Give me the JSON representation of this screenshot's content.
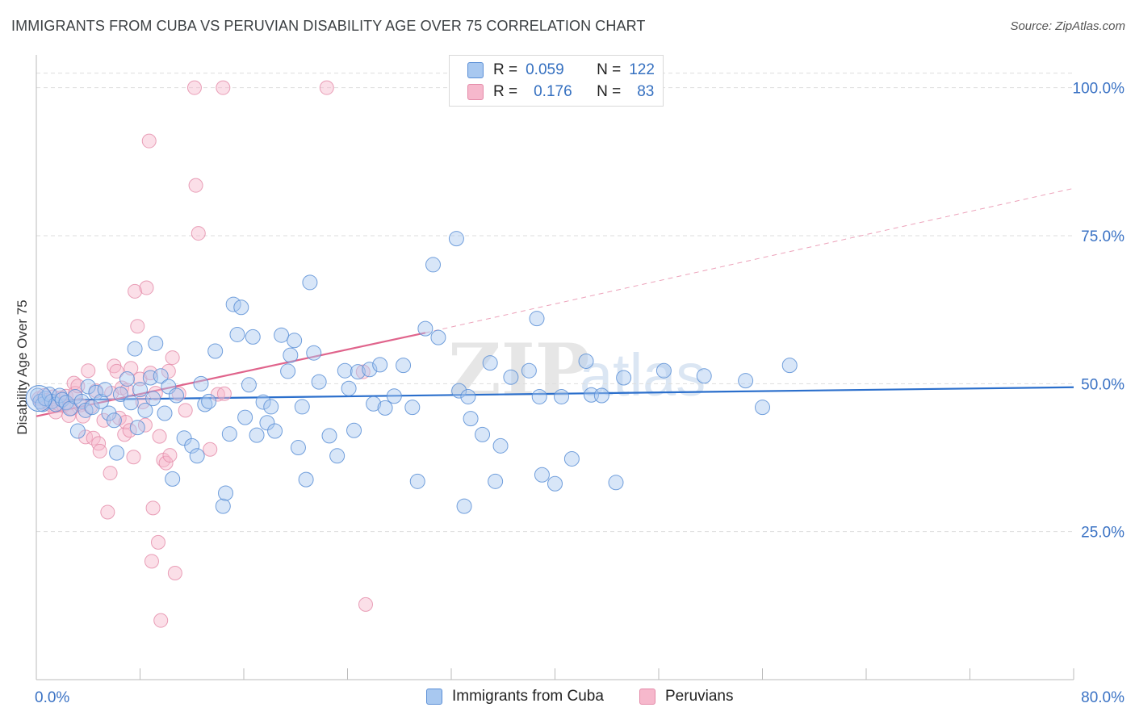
{
  "title": "IMMIGRANTS FROM CUBA VS PERUVIAN DISABILITY AGE OVER 75 CORRELATION CHART",
  "source": "Source: ZipAtlas.com",
  "watermark": "ZIPatlas",
  "colors": {
    "blue_fill": "#a8c8f0",
    "blue_stroke": "#5b8fd6",
    "blue_line": "#2b6fcc",
    "pink_fill": "#f6b8cc",
    "pink_stroke": "#e48aa8",
    "pink_line": "#e0648c",
    "tick_text": "#3a72c4",
    "grid": "#dddddd"
  },
  "legend": {
    "blue": {
      "r_label": "R =",
      "r_value": "0.059",
      "n_label": "N =",
      "n_value": "122"
    },
    "pink": {
      "r_label": "R =",
      "r_value": "0.176",
      "n_label": "N =",
      "n_value": "83"
    }
  },
  "chart_data": {
    "type": "scatter",
    "xlabel": "",
    "ylabel": "Disability Age Over 75",
    "xlim": [
      0,
      80
    ],
    "ylim": [
      0,
      105
    ],
    "x_tick_labels": [
      {
        "value": 0,
        "label": "0.0%"
      },
      {
        "value": 80,
        "label": "80.0%"
      }
    ],
    "y_tick_labels": [
      {
        "value": 25,
        "label": "25.0%"
      },
      {
        "value": 50,
        "label": "50.0%"
      },
      {
        "value": 75,
        "label": "75.0%"
      },
      {
        "value": 100,
        "label": "100.0%"
      }
    ],
    "grid": true,
    "legend_position": "top-center",
    "series": [
      {
        "name": "Immigrants from Cuba",
        "color": "#a8c8f0",
        "trend": {
          "x": [
            0,
            80
          ],
          "y": [
            47.2,
            49.4
          ]
        },
        "points": [
          [
            0.1,
            48.0
          ],
          [
            0.3,
            47.0
          ],
          [
            0.5,
            46.5
          ],
          [
            0.7,
            47.5
          ],
          [
            1.0,
            48.2
          ],
          [
            1.2,
            47.0
          ],
          [
            1.5,
            46.5
          ],
          [
            1.8,
            48.0
          ],
          [
            2.0,
            47.3
          ],
          [
            2.3,
            46.8
          ],
          [
            2.6,
            45.8
          ],
          [
            3.0,
            47.8
          ],
          [
            3.2,
            42.0
          ],
          [
            3.5,
            47.0
          ],
          [
            3.8,
            45.5
          ],
          [
            4.0,
            49.5
          ],
          [
            4.3,
            46.0
          ],
          [
            4.6,
            48.5
          ],
          [
            5.0,
            47.0
          ],
          [
            5.3,
            49.0
          ],
          [
            5.6,
            45.0
          ],
          [
            6.0,
            43.8
          ],
          [
            6.2,
            38.3
          ],
          [
            6.5,
            48.2
          ],
          [
            7.0,
            50.8
          ],
          [
            7.3,
            46.8
          ],
          [
            7.6,
            55.9
          ],
          [
            7.8,
            42.6
          ],
          [
            8.0,
            49.0
          ],
          [
            8.4,
            45.5
          ],
          [
            8.8,
            51.0
          ],
          [
            9.0,
            47.5
          ],
          [
            9.2,
            56.8
          ],
          [
            9.6,
            51.3
          ],
          [
            9.9,
            45.0
          ],
          [
            10.2,
            49.5
          ],
          [
            10.5,
            33.9
          ],
          [
            10.8,
            48.0
          ],
          [
            11.4,
            40.8
          ],
          [
            12.0,
            39.5
          ],
          [
            12.4,
            37.8
          ],
          [
            12.7,
            50.0
          ],
          [
            13.0,
            46.5
          ],
          [
            13.3,
            47.0
          ],
          [
            13.8,
            55.5
          ],
          [
            14.4,
            29.3
          ],
          [
            14.6,
            31.5
          ],
          [
            14.9,
            41.5
          ],
          [
            15.2,
            63.4
          ],
          [
            15.5,
            58.3
          ],
          [
            15.8,
            62.9
          ],
          [
            16.1,
            44.3
          ],
          [
            16.4,
            49.8
          ],
          [
            16.7,
            57.9
          ],
          [
            17.0,
            41.3
          ],
          [
            17.5,
            46.9
          ],
          [
            17.8,
            43.4
          ],
          [
            18.1,
            46.1
          ],
          [
            18.4,
            42.0
          ],
          [
            18.9,
            58.2
          ],
          [
            19.4,
            52.1
          ],
          [
            19.6,
            54.8
          ],
          [
            19.9,
            57.3
          ],
          [
            20.2,
            39.2
          ],
          [
            20.5,
            46.1
          ],
          [
            20.8,
            33.8
          ],
          [
            21.1,
            67.1
          ],
          [
            21.4,
            55.2
          ],
          [
            21.8,
            50.3
          ],
          [
            22.6,
            41.2
          ],
          [
            23.2,
            37.8
          ],
          [
            23.8,
            52.2
          ],
          [
            24.1,
            49.2
          ],
          [
            24.5,
            42.1
          ],
          [
            24.8,
            52.0
          ],
          [
            25.7,
            52.4
          ],
          [
            26.0,
            46.6
          ],
          [
            26.5,
            53.2
          ],
          [
            26.9,
            45.9
          ],
          [
            27.6,
            47.9
          ],
          [
            28.3,
            53.1
          ],
          [
            29.0,
            46.0
          ],
          [
            29.4,
            33.5
          ],
          [
            30.0,
            59.3
          ],
          [
            30.6,
            70.1
          ],
          [
            31.0,
            57.8
          ],
          [
            32.4,
            74.5
          ],
          [
            32.6,
            48.8
          ],
          [
            33.0,
            29.3
          ],
          [
            33.3,
            47.8
          ],
          [
            33.5,
            44.1
          ],
          [
            34.4,
            41.4
          ],
          [
            35.0,
            53.5
          ],
          [
            35.8,
            39.5
          ],
          [
            35.4,
            33.5
          ],
          [
            36.6,
            51.1
          ],
          [
            38.0,
            52.2
          ],
          [
            38.6,
            61.0
          ],
          [
            38.8,
            47.8
          ],
          [
            39.0,
            34.6
          ],
          [
            40.0,
            33.1
          ],
          [
            40.5,
            47.8
          ],
          [
            41.3,
            37.3
          ],
          [
            42.4,
            53.8
          ],
          [
            42.8,
            48.1
          ],
          [
            43.6,
            48.0
          ],
          [
            44.7,
            33.3
          ],
          [
            45.3,
            51.0
          ],
          [
            48.4,
            52.2
          ],
          [
            51.5,
            51.3
          ],
          [
            54.7,
            50.5
          ],
          [
            56.0,
            46.0
          ],
          [
            58.1,
            53.1
          ]
        ]
      },
      {
        "name": "Peruvians",
        "color": "#f6b8cc",
        "trend": {
          "x": [
            0,
            30
          ],
          "y": [
            44.5,
            58.6
          ]
        },
        "trend_dashed": {
          "x": [
            30,
            80
          ],
          "y": [
            58.6,
            83.0
          ]
        },
        "points": [
          [
            0.2,
            47.5
          ],
          [
            0.4,
            46.8
          ],
          [
            0.6,
            48.0
          ],
          [
            0.8,
            47.2
          ],
          [
            1.0,
            46.5
          ],
          [
            1.3,
            47.8
          ],
          [
            1.5,
            45.2
          ],
          [
            1.7,
            46.6
          ],
          [
            1.9,
            47.6
          ],
          [
            2.1,
            46.3
          ],
          [
            2.3,
            47.9
          ],
          [
            2.5,
            44.6
          ],
          [
            2.7,
            45.8
          ],
          [
            2.9,
            50.1
          ],
          [
            3.0,
            48.4
          ],
          [
            3.2,
            49.6
          ],
          [
            3.4,
            46.4
          ],
          [
            3.6,
            44.5
          ],
          [
            3.8,
            41.0
          ],
          [
            4.0,
            52.2
          ],
          [
            4.2,
            46.1
          ],
          [
            4.4,
            40.8
          ],
          [
            4.6,
            48.8
          ],
          [
            4.8,
            39.9
          ],
          [
            4.9,
            38.6
          ],
          [
            5.2,
            43.8
          ],
          [
            5.5,
            28.3
          ],
          [
            5.7,
            34.9
          ],
          [
            5.8,
            48.4
          ],
          [
            6.0,
            53.0
          ],
          [
            6.2,
            52.1
          ],
          [
            6.4,
            44.2
          ],
          [
            6.6,
            49.3
          ],
          [
            6.8,
            41.4
          ],
          [
            6.9,
            43.5
          ],
          [
            7.0,
            48.9
          ],
          [
            7.2,
            42.1
          ],
          [
            7.3,
            52.6
          ],
          [
            7.5,
            37.6
          ],
          [
            7.6,
            65.6
          ],
          [
            7.8,
            59.7
          ],
          [
            8.0,
            50.8
          ],
          [
            8.2,
            46.9
          ],
          [
            8.4,
            43.0
          ],
          [
            8.5,
            66.2
          ],
          [
            8.7,
            91.0
          ],
          [
            8.8,
            51.8
          ],
          [
            8.9,
            20.0
          ],
          [
            9.0,
            29.0
          ],
          [
            9.2,
            48.4
          ],
          [
            9.4,
            23.2
          ],
          [
            9.5,
            41.1
          ],
          [
            9.6,
            10.0
          ],
          [
            9.8,
            37.1
          ],
          [
            10.0,
            36.6
          ],
          [
            10.2,
            52.1
          ],
          [
            10.3,
            37.9
          ],
          [
            10.5,
            54.4
          ],
          [
            10.7,
            18.0
          ],
          [
            11.0,
            48.3
          ],
          [
            11.5,
            45.5
          ],
          [
            12.2,
            100.0
          ],
          [
            12.3,
            83.5
          ],
          [
            12.5,
            75.4
          ],
          [
            13.4,
            38.9
          ],
          [
            14.0,
            48.2
          ],
          [
            14.4,
            100.0
          ],
          [
            14.5,
            48.3
          ],
          [
            22.4,
            100.0
          ],
          [
            25.4,
            12.7
          ],
          [
            25.2,
            52.0
          ]
        ]
      }
    ]
  },
  "bottom_legend": {
    "items": [
      {
        "label": "Immigrants from Cuba"
      },
      {
        "label": "Peruvians"
      }
    ]
  }
}
